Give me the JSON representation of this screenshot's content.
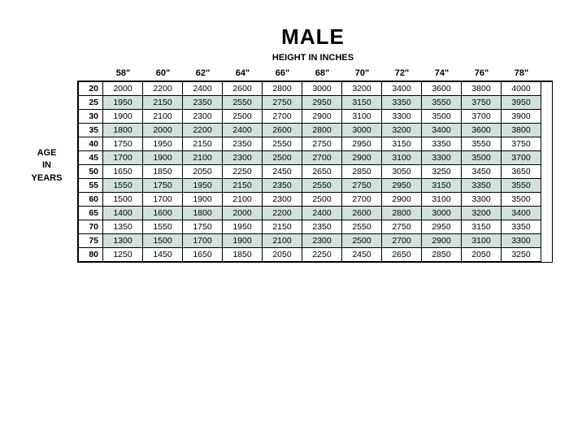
{
  "title": "MALE",
  "subtitle": "HEIGHT IN INCHES",
  "side_label_1": "AGE",
  "side_label_2": "IN",
  "side_label_3": "YEARS",
  "colors": {
    "shaded_row": "#d0e2da",
    "background": "#ffffff",
    "border": "#000000",
    "text": "#000000"
  },
  "typography": {
    "title_fontsize": 26,
    "subtitle_fontsize": 11,
    "header_fontsize": 11,
    "cell_fontsize": 10.5,
    "font_family": "Arial"
  },
  "heights": [
    "58\"",
    "60\"",
    "62\"",
    "64\"",
    "66\"",
    "68\"",
    "70\"",
    "72\"",
    "74\"",
    "76\"",
    "78\""
  ],
  "ages": [
    "20",
    "25",
    "30",
    "35",
    "40",
    "45",
    "50",
    "55",
    "60",
    "65",
    "70",
    "75",
    "80"
  ],
  "rows": [
    [
      "2000",
      "2200",
      "2400",
      "2600",
      "2800",
      "3000",
      "3200",
      "3400",
      "3600",
      "3800",
      "4000"
    ],
    [
      "1950",
      "2150",
      "2350",
      "2550",
      "2750",
      "2950",
      "3150",
      "3350",
      "3550",
      "3750",
      "3950"
    ],
    [
      "1900",
      "2100",
      "2300",
      "2500",
      "2700",
      "2900",
      "3100",
      "3300",
      "3500",
      "3700",
      "3900"
    ],
    [
      "1800",
      "2000",
      "2200",
      "2400",
      "2600",
      "2800",
      "3000",
      "3200",
      "3400",
      "3600",
      "3800"
    ],
    [
      "1750",
      "1950",
      "2150",
      "2350",
      "2550",
      "2750",
      "2950",
      "3150",
      "3350",
      "3550",
      "3750"
    ],
    [
      "1700",
      "1900",
      "2100",
      "2300",
      "2500",
      "2700",
      "2900",
      "3100",
      "3300",
      "3500",
      "3700"
    ],
    [
      "1650",
      "1850",
      "2050",
      "2250",
      "2450",
      "2650",
      "2850",
      "3050",
      "3250",
      "3450",
      "3650"
    ],
    [
      "1550",
      "1750",
      "1950",
      "2150",
      "2350",
      "2550",
      "2750",
      "2950",
      "3150",
      "3350",
      "3550"
    ],
    [
      "1500",
      "1700",
      "1900",
      "2100",
      "2300",
      "2500",
      "2700",
      "2900",
      "3100",
      "3300",
      "3500"
    ],
    [
      "1400",
      "1600",
      "1800",
      "2000",
      "2200",
      "2400",
      "2600",
      "2800",
      "3000",
      "3200",
      "3400"
    ],
    [
      "1350",
      "1550",
      "1750",
      "1950",
      "2150",
      "2350",
      "2550",
      "2750",
      "2950",
      "3150",
      "3350"
    ],
    [
      "1300",
      "1500",
      "1700",
      "1900",
      "2100",
      "2300",
      "2500",
      "2700",
      "2900",
      "3100",
      "3300"
    ],
    [
      "1250",
      "1450",
      "1650",
      "1850",
      "2050",
      "2250",
      "2450",
      "2650",
      "2850",
      "2050",
      "3250"
    ]
  ],
  "shaded_rows": [
    false,
    true,
    false,
    true,
    false,
    true,
    false,
    true,
    false,
    true,
    false,
    true,
    false
  ]
}
